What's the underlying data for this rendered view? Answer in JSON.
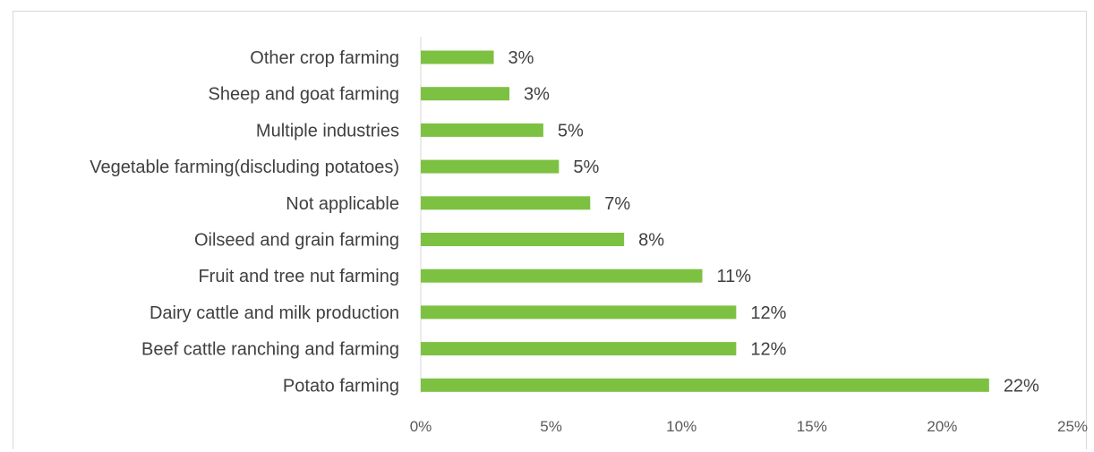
{
  "chart_data": {
    "type": "bar",
    "orientation": "horizontal",
    "categories": [
      "Other crop farming",
      "Sheep and goat farming",
      "Multiple industries",
      "Vegetable farming(discluding potatoes)",
      "Not applicable",
      "Oilseed and grain farming",
      "Fruit and tree nut farming",
      "Dairy cattle and milk production",
      "Beef cattle ranching and farming",
      "Potato farming"
    ],
    "values": [
      2.8,
      3.4,
      4.7,
      5.3,
      6.5,
      7.8,
      10.8,
      12.1,
      12.1,
      21.8
    ],
    "data_labels": [
      "3%",
      "3%",
      "5%",
      "5%",
      "7%",
      "8%",
      "11%",
      "12%",
      "12%",
      "22%"
    ],
    "xlim": [
      0,
      25
    ],
    "x_ticks": [
      "0%",
      "5%",
      "10%",
      "15%",
      "20%",
      "25%"
    ],
    "bar_color": "#7dc142",
    "axis_color": "#d9d9d9",
    "grid": false,
    "legend": false,
    "title": "",
    "xlabel": "",
    "ylabel": ""
  }
}
